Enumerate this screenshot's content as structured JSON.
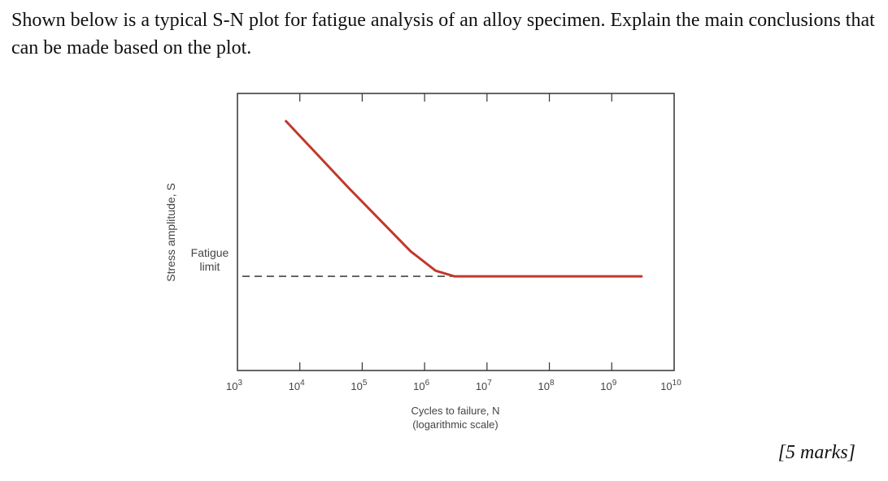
{
  "question": {
    "text": "Shown below is a typical S-N plot for fatigue analysis of an alloy specimen. Explain the main conclusions that can be made based on the plot.",
    "marks": "[5 marks]"
  },
  "chart_data": {
    "type": "line",
    "title": "",
    "xlabel": "Cycles to failure, N",
    "xlabel_note": "(logarithmic scale)",
    "ylabel": "Stress amplitude, S",
    "x_scale": "log",
    "xlim": [
      1000,
      10000000000
    ],
    "x_ticks": [
      {
        "value": 1000,
        "base": "10",
        "exp": "3"
      },
      {
        "value": 10000,
        "base": "10",
        "exp": "4"
      },
      {
        "value": 100000,
        "base": "10",
        "exp": "5"
      },
      {
        "value": 1000000,
        "base": "10",
        "exp": "6"
      },
      {
        "value": 10000000,
        "base": "10",
        "exp": "7"
      },
      {
        "value": 100000000,
        "base": "10",
        "exp": "8"
      },
      {
        "value": 1000000000,
        "base": "10",
        "exp": "9"
      },
      {
        "value": 10000000000,
        "base": "10",
        "exp": "10"
      }
    ],
    "ylim": [
      0,
      1
    ],
    "y_ticks_labeled": false,
    "series": [
      {
        "color": "#c0392b",
        "points": [
          {
            "x": 6000,
            "y": 0.9
          },
          {
            "x": 60000,
            "y": 0.66
          },
          {
            "x": 600000,
            "y": 0.43
          },
          {
            "x": 1500000,
            "y": 0.36
          },
          {
            "x": 3000000,
            "y": 0.34
          },
          {
            "x": 3000000000,
            "y": 0.34
          }
        ]
      }
    ],
    "fatigue_limit": {
      "label_line1": "Fatigue",
      "label_line2": "limit",
      "y": 0.34,
      "line_style": "dashed"
    },
    "grid": false
  }
}
